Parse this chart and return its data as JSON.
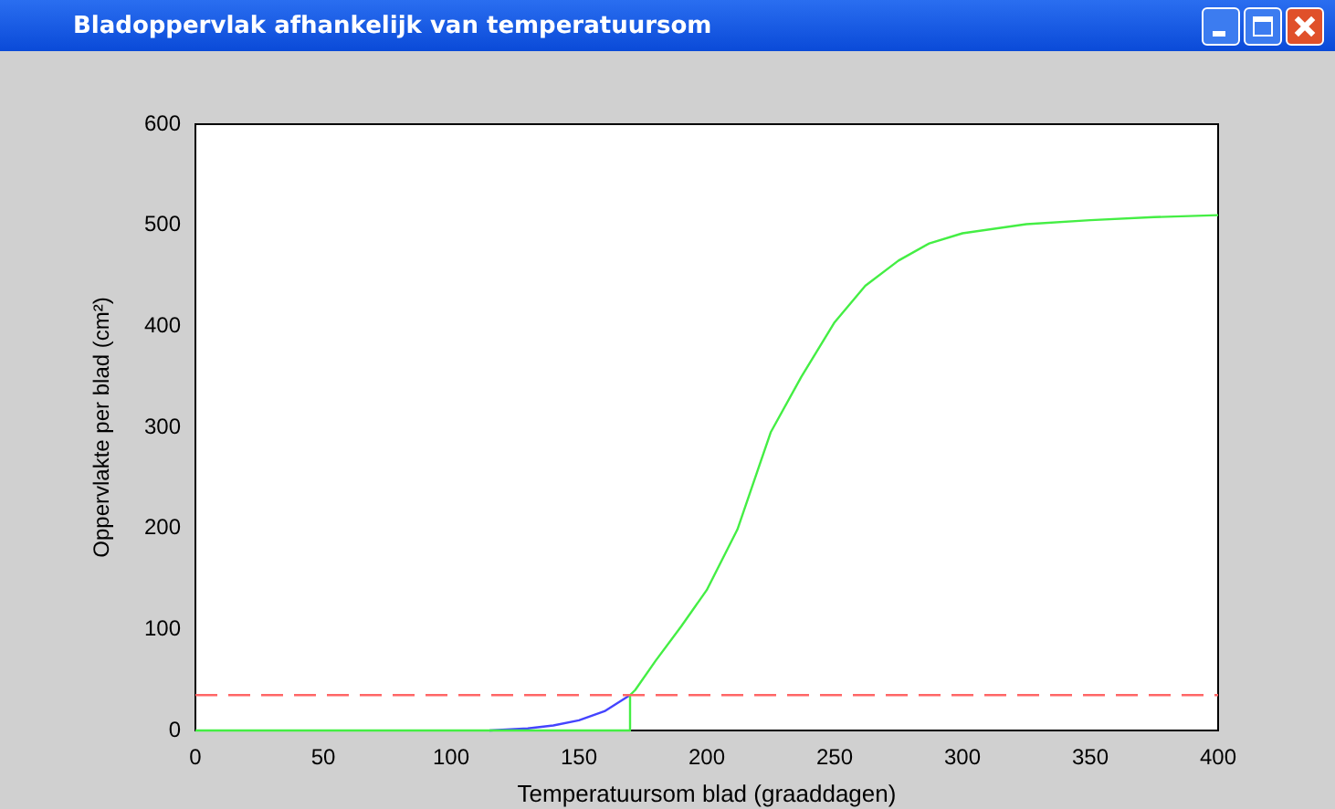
{
  "chart_data": {
    "type": "line",
    "title": "Bladoppervlak afhankelijk van temperatuursom",
    "xlabel": "Temperatuursom blad (graaddagen)",
    "ylabel": "Oppervlakte per blad (cm²)",
    "xlim": [
      0,
      400
    ],
    "ylim": [
      0,
      600
    ],
    "xticks": [
      0,
      50,
      100,
      150,
      200,
      250,
      300,
      350,
      400
    ],
    "yticks": [
      0,
      100,
      200,
      300,
      400,
      500,
      600
    ],
    "marker": "none",
    "line_style": "solid",
    "series": [
      {
        "color": "#44ee44",
        "x": [
          0,
          170,
          170,
          172,
          180,
          190,
          200,
          212,
          225,
          237,
          250,
          262,
          275,
          287,
          300,
          325,
          350,
          375,
          400
        ],
        "values": [
          0,
          0,
          35,
          40,
          69,
          103,
          139,
          199,
          295,
          350,
          404,
          440,
          465,
          482,
          492,
          501,
          505,
          508,
          510
        ]
      },
      {
        "color": "#4444ff",
        "x": [
          115,
          130,
          140,
          150,
          160,
          170
        ],
        "values": [
          0,
          2,
          5,
          10,
          19,
          35
        ]
      }
    ],
    "ref_lines": [
      {
        "axis": "y",
        "value": 35,
        "color": "#ff6666",
        "line_style": "dashed"
      }
    ]
  }
}
